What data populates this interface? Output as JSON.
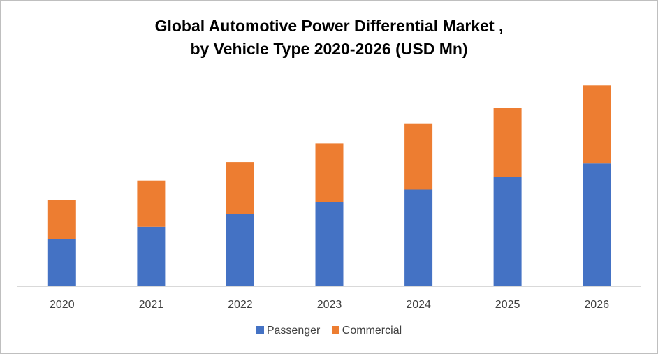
{
  "chart_data": {
    "type": "bar",
    "stacked": true,
    "title_line1": "Global Automotive Power Differential Market ,",
    "title_line2": "by Vehicle Type 2020-2026 (USD Mn)",
    "categories": [
      "2020",
      "2021",
      "2022",
      "2023",
      "2024",
      "2025",
      "2026"
    ],
    "series": [
      {
        "name": "Passenger",
        "color": "#4472c4",
        "values": [
          63,
          80,
          97,
          113,
          130,
          147,
          165
        ]
      },
      {
        "name": "Commercial",
        "color": "#ed7d31",
        "values": [
          53,
          62,
          70,
          79,
          89,
          93,
          105
        ]
      }
    ],
    "ylim": [
      0,
      290
    ],
    "grid": false,
    "legend_position": "bottom"
  }
}
